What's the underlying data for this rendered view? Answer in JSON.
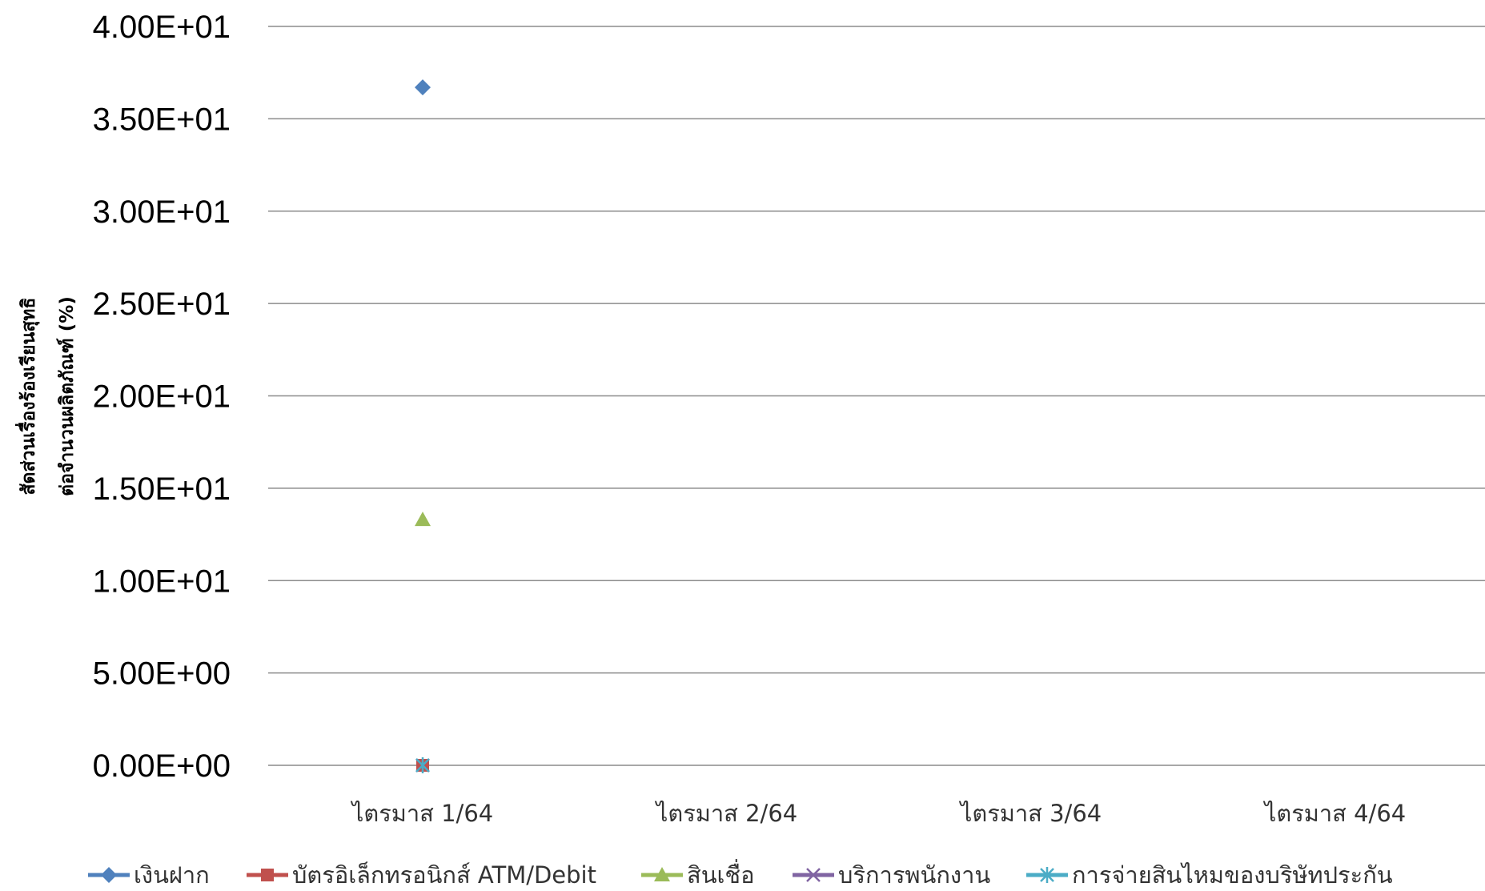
{
  "chart_data": {
    "type": "scatter",
    "categories": [
      "ไตรมาส 1/64",
      "ไตรมาส 2/64",
      "ไตรมาส 3/64",
      "ไตรมาส 4/64"
    ],
    "ylabel_lines": [
      "สัดส่วนเรื่องร้องเรียนสุทธิ",
      "ต่อจำนวนผลิตภัณฑ์ (%)"
    ],
    "ylim": [
      0,
      40
    ],
    "yticks": [
      "0.00E+00",
      "5.00E+00",
      "1.00E+01",
      "1.50E+01",
      "2.00E+01",
      "2.50E+01",
      "3.00E+01",
      "3.50E+01",
      "4.00E+01"
    ],
    "grid": true,
    "legend_position": "bottom",
    "series": [
      {
        "name": "เงินฝาก",
        "marker": "diamond",
        "color": "#4F81BD",
        "values": [
          36.7,
          null,
          null,
          null
        ]
      },
      {
        "name": "บัตรอิเล็กทรอนิกส์ ATM/Debit",
        "marker": "square",
        "color": "#C0504D",
        "values": [
          0,
          null,
          null,
          null
        ]
      },
      {
        "name": "สินเชื่อ",
        "marker": "triangle",
        "color": "#9BBB59",
        "values": [
          13.3,
          null,
          null,
          null
        ]
      },
      {
        "name": "บริการพนักงาน",
        "marker": "x",
        "color": "#8064A2",
        "values": [
          0,
          null,
          null,
          null
        ]
      },
      {
        "name": "การจ่ายสินไหมของบริษัทประกัน",
        "marker": "star",
        "color": "#4BACC6",
        "values": [
          0,
          null,
          null,
          null
        ]
      }
    ]
  }
}
